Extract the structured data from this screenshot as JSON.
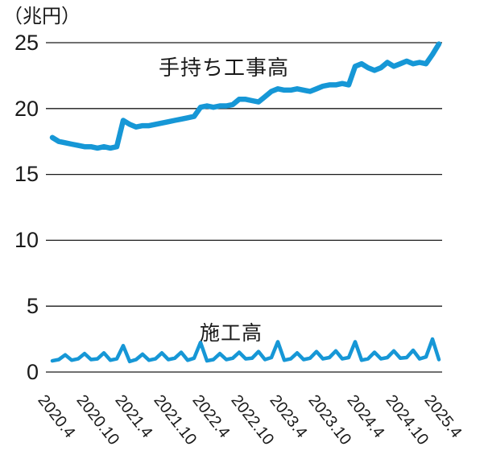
{
  "chart_data": {
    "type": "line",
    "title": "",
    "y_axis": {
      "unit": "（兆円）",
      "ticks": [
        25,
        20,
        15,
        10,
        5,
        0
      ],
      "tick_labels": [
        "25",
        "20",
        "15",
        "10",
        "5",
        "0"
      ]
    },
    "ylim": [
      0,
      25
    ],
    "x_unit": "year.month",
    "x_frequency": "monthly",
    "x_range": [
      "2020.4",
      "2025.4"
    ],
    "x_ticks": [
      "2020.4",
      "2020.10",
      "2021.4",
      "2021.10",
      "2022.4",
      "2022.10",
      "2023.4",
      "2023.10",
      "2024.4",
      "2024.10",
      "2025.4"
    ],
    "grid": true,
    "grid_color": "#1a1a1a",
    "legend_position": "inline-labels",
    "series": [
      {
        "name": "手持ち工事高",
        "color": "#1697d6",
        "values": [
          17.8,
          17.5,
          17.4,
          17.3,
          17.2,
          17.1,
          17.1,
          17.0,
          17.1,
          17.0,
          17.1,
          19.1,
          18.8,
          18.6,
          18.7,
          18.7,
          18.8,
          18.9,
          19.0,
          19.1,
          19.2,
          19.3,
          19.4,
          20.1,
          20.2,
          20.1,
          20.2,
          20.2,
          20.3,
          20.7,
          20.7,
          20.6,
          20.5,
          20.9,
          21.3,
          21.5,
          21.4,
          21.4,
          21.5,
          21.4,
          21.3,
          21.5,
          21.7,
          21.8,
          21.8,
          21.9,
          21.8,
          23.2,
          23.4,
          23.1,
          22.9,
          23.1,
          23.5,
          23.2,
          23.4,
          23.6,
          23.4,
          23.5,
          23.4,
          24.1,
          24.9
        ]
      },
      {
        "name": "施工高",
        "color": "#1697d6",
        "values": [
          0.85,
          0.95,
          1.3,
          0.9,
          1.0,
          1.4,
          0.95,
          1.0,
          1.45,
          0.9,
          1.0,
          2.0,
          0.8,
          0.95,
          1.35,
          0.9,
          1.0,
          1.45,
          0.95,
          1.05,
          1.5,
          0.9,
          1.05,
          2.25,
          0.85,
          0.95,
          1.4,
          0.95,
          1.05,
          1.5,
          1.0,
          1.05,
          1.55,
          0.95,
          1.1,
          2.3,
          0.9,
          1.0,
          1.45,
          0.95,
          1.05,
          1.55,
          1.0,
          1.1,
          1.6,
          1.0,
          1.1,
          2.3,
          0.9,
          1.0,
          1.5,
          1.0,
          1.1,
          1.6,
          1.05,
          1.1,
          1.65,
          1.0,
          1.15,
          2.5,
          0.95
        ]
      }
    ]
  }
}
